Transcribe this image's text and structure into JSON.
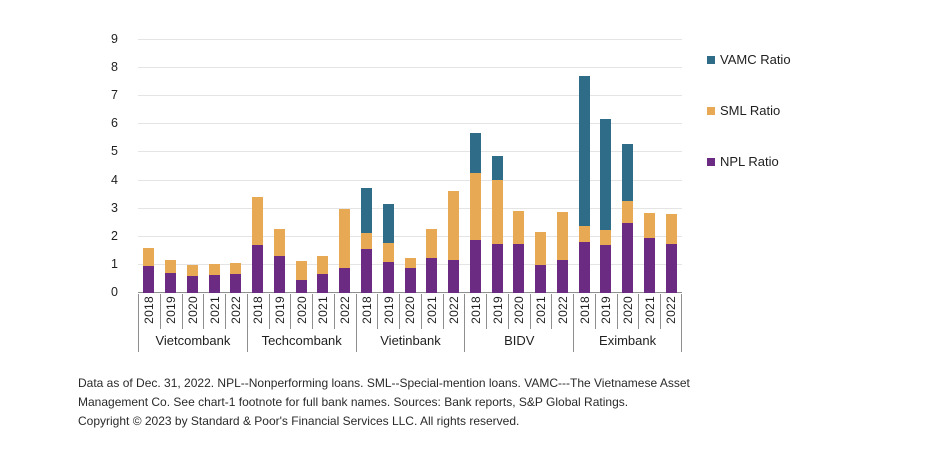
{
  "footer": {
    "line1": "Data as of Dec. 31, 2022. NPL--Nonperforming loans. SML--Special-mention loans. VAMC---The Vietnamese Asset",
    "line2": "Management Co. See chart-1 footnote for full bank names. Sources: Bank reports, S&P Global Ratings.",
    "line3": "Copyright © 2023 by Standard & Poor's Financial Services LLC. All rights reserved."
  },
  "chart_data": {
    "type": "bar",
    "stacked": true,
    "title": "",
    "xlabel": "",
    "ylabel": "",
    "ylim": [
      0,
      9
    ],
    "yticks": [
      0,
      1,
      2,
      3,
      4,
      5,
      6,
      7,
      8,
      9
    ],
    "grid": true,
    "legend_position": "right",
    "legend_order": [
      "VAMC Ratio",
      "SML Ratio",
      "NPL Ratio"
    ],
    "group_labels": [
      "Vietcombank",
      "Techcombank",
      "Vietinbank",
      "BIDV",
      "Eximbank"
    ],
    "years": [
      "2018",
      "2019",
      "2020",
      "2021",
      "2022"
    ],
    "categories": [
      "Vietcombank 2018",
      "Vietcombank 2019",
      "Vietcombank 2020",
      "Vietcombank 2021",
      "Vietcombank 2022",
      "Techcombank 2018",
      "Techcombank 2019",
      "Techcombank 2020",
      "Techcombank 2021",
      "Techcombank 2022",
      "Vietinbank 2018",
      "Vietinbank 2019",
      "Vietinbank 2020",
      "Vietinbank 2021",
      "Vietinbank 2022",
      "BIDV 2018",
      "BIDV 2019",
      "BIDV 2020",
      "BIDV 2021",
      "BIDV 2022",
      "Eximbank 2018",
      "Eximbank 2019",
      "Eximbank 2020",
      "Eximbank 2021",
      "Eximbank 2022"
    ],
    "series": [
      {
        "name": "NPL Ratio",
        "color": "#6B2B83",
        "values": [
          0.95,
          0.72,
          0.6,
          0.64,
          0.68,
          1.7,
          1.3,
          0.45,
          0.66,
          0.88,
          1.55,
          1.12,
          0.9,
          1.25,
          1.17,
          1.9,
          1.74,
          1.76,
          1.0,
          1.16,
          1.83,
          1.7,
          2.49,
          1.95,
          1.76
        ]
      },
      {
        "name": "SML Ratio",
        "color": "#E8A955",
        "values": [
          0.65,
          0.45,
          0.38,
          0.4,
          0.39,
          1.7,
          0.98,
          0.68,
          0.64,
          2.12,
          0.6,
          0.65,
          0.33,
          1.03,
          2.45,
          2.38,
          2.28,
          1.16,
          1.16,
          1.73,
          0.55,
          0.53,
          0.77,
          0.91,
          1.06
        ]
      },
      {
        "name": "VAMC Ratio",
        "color": "#2E6C88",
        "values": [
          0,
          0,
          0,
          0,
          0,
          0,
          0,
          0,
          0,
          0,
          1.6,
          1.4,
          0,
          0,
          0,
          1.42,
          0.87,
          0,
          0,
          0,
          5.34,
          3.97,
          2.05,
          0,
          0
        ]
      }
    ],
    "colors": {
      "gridline": "#E4E4E4",
      "axis": "#8F8F8F",
      "text": "#1F1F1F"
    }
  }
}
